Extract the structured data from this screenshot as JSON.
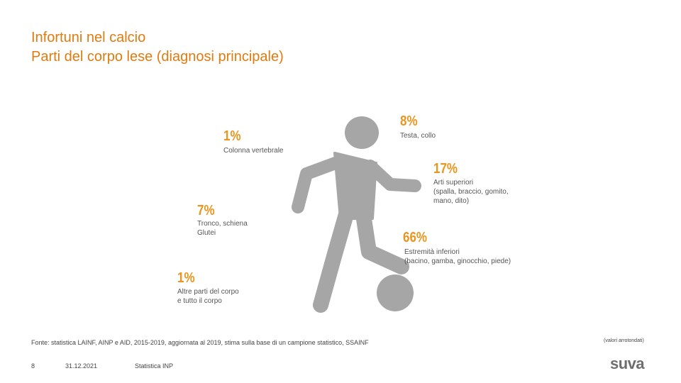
{
  "title": {
    "line1": "Infortuni nel calcio",
    "line2": "Parti del corpo lese (diagnosi principale)"
  },
  "callouts": {
    "testa": {
      "pct": "8%",
      "label": "Testa, collo"
    },
    "colonna": {
      "pct": "1%",
      "label": "Colonna vertebrale"
    },
    "arti_superiori": {
      "pct": "17%",
      "label": "Arti superiori\n(spalla, braccio, gomito,\nmano, dito)"
    },
    "tronco": {
      "pct": "7%",
      "label": "Tronco, schiena\nGlutei"
    },
    "estremita": {
      "pct": "66%",
      "label": "Estremità inferiori\n(bacino, gamba, ginocchio, piede)"
    },
    "altre": {
      "pct": "1%",
      "label": "Altre parti del corpo\ne tutto il corpo"
    }
  },
  "source": "Fonte: statistica LAINF, AINP e AID, 2015-2019, aggiornata al 2019, stima sulla base di un campione statistico, SSAINF",
  "note": "(valori arrotondati)",
  "footer": {
    "page": "8",
    "date": "31.12.2021",
    "label": "Statistica INP"
  },
  "logo": "suva",
  "colors": {
    "accent": "#e8961f",
    "title": "#e07b10",
    "figure": "#a6a6a6"
  }
}
